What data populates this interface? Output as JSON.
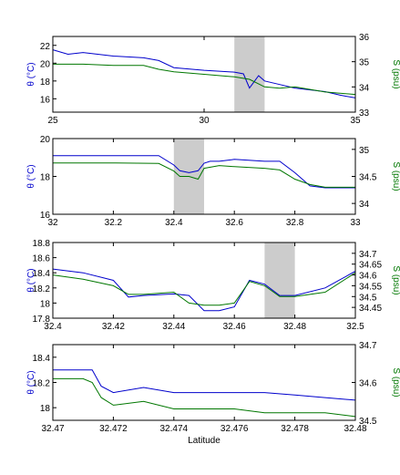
{
  "colors": {
    "theta": "#0000cc",
    "salinity": "#007700",
    "shade": "#cccccc",
    "axis": "#000000"
  },
  "chart_data": [
    {
      "type": "line",
      "xlabel": "",
      "ylabel_left": "θ (°C)",
      "ylabel_right": "S (psu)",
      "xlim": [
        25,
        35
      ],
      "ylim_left": [
        14.5,
        23
      ],
      "ylim_right": [
        33,
        36
      ],
      "xticks": [
        "25",
        "30",
        "35"
      ],
      "yticks_left": [
        "16",
        "18",
        "20",
        "22"
      ],
      "yticks_right": [
        "33",
        "34",
        "35",
        "36"
      ],
      "shade": [
        31.0,
        32.0
      ],
      "series": [
        {
          "axis": "left",
          "x": [
            25,
            25.5,
            26,
            27,
            28,
            28.5,
            29,
            30,
            31,
            31.3,
            31.5,
            31.8,
            32,
            32.5,
            33,
            34,
            34.5,
            35
          ],
          "values": [
            21.5,
            21.0,
            21.2,
            20.8,
            20.6,
            20.3,
            19.5,
            19.2,
            19.0,
            18.8,
            17.2,
            18.6,
            18.0,
            17.6,
            17.2,
            16.8,
            16.4,
            16.1
          ]
        },
        {
          "axis": "right",
          "x": [
            25,
            26,
            27,
            28,
            28.5,
            29,
            30,
            31,
            31.5,
            32,
            32.5,
            33,
            34,
            35
          ],
          "values": [
            34.9,
            34.9,
            34.85,
            34.85,
            34.7,
            34.6,
            34.5,
            34.4,
            34.3,
            34.0,
            33.95,
            34.0,
            33.8,
            33.7
          ]
        }
      ]
    },
    {
      "type": "line",
      "xlabel": "",
      "ylabel_left": "θ (°C)",
      "ylabel_right": "S (psu)",
      "xlim": [
        32,
        33
      ],
      "ylim_left": [
        16,
        20
      ],
      "ylim_right": [
        33.8,
        35.2
      ],
      "xticks": [
        "32",
        "32.2",
        "32.4",
        "32.6",
        "32.8",
        "33"
      ],
      "yticks_left": [
        "16",
        "18",
        "20"
      ],
      "yticks_right": [
        "34",
        "34.5",
        "35"
      ],
      "shade": [
        32.4,
        32.5
      ],
      "series": [
        {
          "axis": "left",
          "x": [
            32,
            32.2,
            32.35,
            32.4,
            32.42,
            32.45,
            32.48,
            32.5,
            32.52,
            32.55,
            32.6,
            32.7,
            32.75,
            32.8,
            32.85,
            32.9,
            33
          ],
          "values": [
            19.1,
            19.1,
            19.1,
            18.6,
            18.3,
            18.2,
            18.3,
            18.7,
            18.8,
            18.8,
            18.9,
            18.8,
            18.8,
            18.2,
            17.5,
            17.4,
            17.4
          ]
        },
        {
          "axis": "right",
          "x": [
            32,
            32.2,
            32.35,
            32.4,
            32.42,
            32.45,
            32.48,
            32.5,
            32.55,
            32.6,
            32.7,
            32.75,
            32.8,
            32.85,
            32.9,
            33
          ],
          "values": [
            34.75,
            34.75,
            34.74,
            34.6,
            34.5,
            34.5,
            34.45,
            34.65,
            34.7,
            34.68,
            34.65,
            34.62,
            34.45,
            34.35,
            34.3,
            34.3
          ]
        }
      ]
    },
    {
      "type": "line",
      "xlabel": "",
      "ylabel_left": "θ (°C)",
      "ylabel_right": "S (psu)",
      "xlim": [
        32.4,
        32.5
      ],
      "ylim_left": [
        17.8,
        18.8
      ],
      "ylim_right": [
        34.4,
        34.75
      ],
      "xticks": [
        "32.4",
        "32.42",
        "32.44",
        "32.46",
        "32.48",
        "32.5"
      ],
      "yticks_left": [
        "17.8",
        "18",
        "18.2",
        "18.4",
        "18.6",
        "18.8"
      ],
      "yticks_right": [
        "34.45",
        "34.5",
        "34.55",
        "34.6",
        "34.65",
        "34.7"
      ],
      "shade": [
        32.47,
        32.48
      ],
      "series": [
        {
          "axis": "left",
          "x": [
            32.4,
            32.41,
            32.42,
            32.425,
            32.43,
            32.44,
            32.445,
            32.45,
            32.455,
            32.46,
            32.465,
            32.47,
            32.475,
            32.48,
            32.49,
            32.5
          ],
          "values": [
            18.45,
            18.4,
            18.3,
            18.08,
            18.1,
            18.12,
            18.1,
            17.9,
            17.9,
            17.95,
            18.3,
            18.25,
            18.1,
            18.1,
            18.2,
            18.42
          ]
        },
        {
          "axis": "right",
          "x": [
            32.4,
            32.41,
            32.42,
            32.425,
            32.43,
            32.44,
            32.445,
            32.45,
            32.455,
            32.46,
            32.465,
            32.47,
            32.475,
            32.48,
            32.49,
            32.5
          ],
          "values": [
            34.6,
            34.58,
            34.55,
            34.51,
            34.51,
            34.52,
            34.47,
            34.46,
            34.46,
            34.47,
            34.57,
            34.55,
            34.5,
            34.5,
            34.52,
            34.61
          ]
        }
      ]
    },
    {
      "type": "line",
      "xlabel": "Latitude",
      "ylabel_left": "θ (°C)",
      "ylabel_right": "S (psu)",
      "xlim": [
        32.47,
        32.48
      ],
      "ylim_left": [
        17.9,
        18.5
      ],
      "ylim_right": [
        34.5,
        34.7
      ],
      "xticks": [
        "32.47",
        "32.472",
        "32.474",
        "32.476",
        "32.478",
        "32.48"
      ],
      "yticks_left": [
        "18",
        "18.2",
        "18.4"
      ],
      "yticks_right": [
        "34.5",
        "34.6",
        "34.7"
      ],
      "shade": null,
      "series": [
        {
          "axis": "left",
          "x": [
            32.47,
            32.471,
            32.4713,
            32.4716,
            32.472,
            32.473,
            32.474,
            32.475,
            32.476,
            32.477,
            32.478,
            32.479,
            32.48
          ],
          "values": [
            18.3,
            18.3,
            18.3,
            18.17,
            18.12,
            18.16,
            18.12,
            18.12,
            18.12,
            18.12,
            18.1,
            18.08,
            18.06
          ]
        },
        {
          "axis": "right",
          "x": [
            32.47,
            32.471,
            32.4713,
            32.4716,
            32.472,
            32.473,
            32.474,
            32.475,
            32.476,
            32.477,
            32.478,
            32.479,
            32.48
          ],
          "values": [
            34.61,
            34.61,
            34.6,
            34.56,
            34.54,
            34.55,
            34.53,
            34.53,
            34.53,
            34.52,
            34.52,
            34.52,
            34.51
          ]
        }
      ]
    }
  ]
}
